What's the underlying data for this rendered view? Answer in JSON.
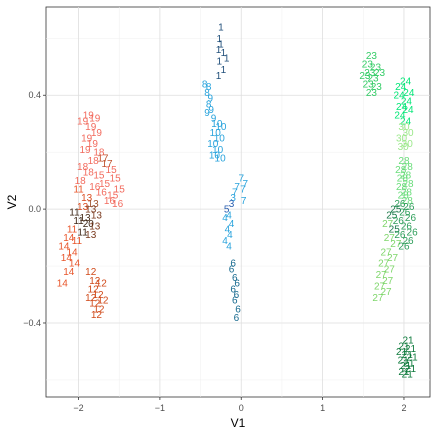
{
  "chart_data": {
    "type": "scatter",
    "title": "",
    "xlabel": "V1",
    "ylabel": "V2",
    "xlim": [
      -2.4,
      2.32
    ],
    "ylim": [
      -0.66,
      0.71
    ],
    "x_ticks": [
      -2,
      -1,
      0,
      1,
      2
    ],
    "y_ticks": [
      -0.4,
      0.0,
      0.4
    ],
    "x_tick_labels": [
      "−2",
      "−1",
      "0",
      "1",
      "2"
    ],
    "y_tick_labels": [
      "−0.4",
      "0.0",
      "0.4"
    ],
    "grid": true,
    "legend": "none",
    "marker": "text labels",
    "points": [
      {
        "x": -0.25,
        "y": 0.64,
        "label": "1",
        "color": "#1f4e79"
      },
      {
        "x": -0.27,
        "y": 0.6,
        "label": "1",
        "color": "#1f4e79"
      },
      {
        "x": -0.25,
        "y": 0.58,
        "label": "1",
        "color": "#1f4e79"
      },
      {
        "x": -0.28,
        "y": 0.56,
        "label": "1",
        "color": "#1f4e79"
      },
      {
        "x": -0.22,
        "y": 0.55,
        "label": "1",
        "color": "#1f4e79"
      },
      {
        "x": -0.18,
        "y": 0.53,
        "label": "1",
        "color": "#1f4e79"
      },
      {
        "x": -0.27,
        "y": 0.52,
        "label": "1",
        "color": "#1f4e79"
      },
      {
        "x": -0.22,
        "y": 0.49,
        "label": "1",
        "color": "#1f4e79"
      },
      {
        "x": -0.28,
        "y": 0.47,
        "label": "1",
        "color": "#1f4e79"
      },
      {
        "x": -0.45,
        "y": 0.44,
        "label": "8",
        "color": "#29a3dc"
      },
      {
        "x": -0.4,
        "y": 0.43,
        "label": "8",
        "color": "#29a3dc"
      },
      {
        "x": -0.42,
        "y": 0.41,
        "label": "8",
        "color": "#29a3dc"
      },
      {
        "x": -0.38,
        "y": 0.39,
        "label": "9",
        "color": "#29a3dc"
      },
      {
        "x": -0.4,
        "y": 0.37,
        "label": "8",
        "color": "#29a3dc"
      },
      {
        "x": -0.37,
        "y": 0.35,
        "label": "9",
        "color": "#29a3dc"
      },
      {
        "x": -0.42,
        "y": 0.34,
        "label": "9",
        "color": "#29a3dc"
      },
      {
        "x": -0.34,
        "y": 0.32,
        "label": "9",
        "color": "#29a3dc"
      },
      {
        "x": -0.3,
        "y": 0.3,
        "label": "10",
        "color": "#29a3dc"
      },
      {
        "x": -0.25,
        "y": 0.29,
        "label": "10",
        "color": "#29a3dc"
      },
      {
        "x": -0.32,
        "y": 0.27,
        "label": "10",
        "color": "#29a3dc"
      },
      {
        "x": -0.27,
        "y": 0.25,
        "label": "10",
        "color": "#29a3dc"
      },
      {
        "x": -0.35,
        "y": 0.23,
        "label": "10",
        "color": "#29a3dc"
      },
      {
        "x": -0.29,
        "y": 0.21,
        "label": "10",
        "color": "#29a3dc"
      },
      {
        "x": -0.33,
        "y": 0.19,
        "label": "10",
        "color": "#29a3dc"
      },
      {
        "x": -0.26,
        "y": 0.18,
        "label": "10",
        "color": "#29a3dc"
      },
      {
        "x": 0.0,
        "y": 0.11,
        "label": "7",
        "color": "#29a3dc"
      },
      {
        "x": 0.05,
        "y": 0.09,
        "label": "7",
        "color": "#29a3dc"
      },
      {
        "x": -0.05,
        "y": 0.08,
        "label": "7",
        "color": "#29a3dc"
      },
      {
        "x": 0.02,
        "y": 0.07,
        "label": "7",
        "color": "#29a3dc"
      },
      {
        "x": -0.08,
        "y": 0.06,
        "label": "7",
        "color": "#29a3dc"
      },
      {
        "x": -0.1,
        "y": 0.04,
        "label": "3",
        "color": "#29a3dc"
      },
      {
        "x": 0.03,
        "y": 0.03,
        "label": "7",
        "color": "#29a3dc"
      },
      {
        "x": -0.12,
        "y": 0.02,
        "label": "3",
        "color": "#2b5fb0"
      },
      {
        "x": -0.18,
        "y": 0.0,
        "label": "5",
        "color": "#2b5fb0"
      },
      {
        "x": -0.15,
        "y": -0.02,
        "label": "4",
        "color": "#29a3dc"
      },
      {
        "x": -0.2,
        "y": -0.03,
        "label": "4",
        "color": "#29a3dc"
      },
      {
        "x": -0.12,
        "y": -0.05,
        "label": "4",
        "color": "#29a3dc"
      },
      {
        "x": -0.17,
        "y": -0.07,
        "label": "4",
        "color": "#29a3dc"
      },
      {
        "x": -0.14,
        "y": -0.09,
        "label": "4",
        "color": "#29a3dc"
      },
      {
        "x": -0.2,
        "y": -0.11,
        "label": "4",
        "color": "#29a3dc"
      },
      {
        "x": -0.15,
        "y": -0.13,
        "label": "4",
        "color": "#29a3dc"
      },
      {
        "x": -0.1,
        "y": -0.19,
        "label": "6",
        "color": "#176a8f"
      },
      {
        "x": -0.12,
        "y": -0.21,
        "label": "6",
        "color": "#176a8f"
      },
      {
        "x": -0.08,
        "y": -0.24,
        "label": "6",
        "color": "#176a8f"
      },
      {
        "x": -0.05,
        "y": -0.26,
        "label": "6",
        "color": "#176a8f"
      },
      {
        "x": -0.1,
        "y": -0.28,
        "label": "6",
        "color": "#176a8f"
      },
      {
        "x": -0.06,
        "y": -0.3,
        "label": "6",
        "color": "#176a8f"
      },
      {
        "x": -0.08,
        "y": -0.32,
        "label": "6",
        "color": "#176a8f"
      },
      {
        "x": -0.04,
        "y": -0.35,
        "label": "6",
        "color": "#176a8f"
      },
      {
        "x": -0.06,
        "y": -0.38,
        "label": "6",
        "color": "#176a8f"
      },
      {
        "x": -1.88,
        "y": 0.33,
        "label": "19",
        "color": "#f26b5e"
      },
      {
        "x": -1.8,
        "y": 0.32,
        "label": "19",
        "color": "#f26b5e"
      },
      {
        "x": -1.95,
        "y": 0.31,
        "label": "19",
        "color": "#f26b5e"
      },
      {
        "x": -1.85,
        "y": 0.29,
        "label": "19",
        "color": "#f26b5e"
      },
      {
        "x": -1.78,
        "y": 0.27,
        "label": "19",
        "color": "#f26b5e"
      },
      {
        "x": -1.9,
        "y": 0.25,
        "label": "19",
        "color": "#f26b5e"
      },
      {
        "x": -1.83,
        "y": 0.23,
        "label": "19",
        "color": "#f26b5e"
      },
      {
        "x": -1.92,
        "y": 0.21,
        "label": "19",
        "color": "#f26b5e"
      },
      {
        "x": -1.75,
        "y": 0.2,
        "label": "18",
        "color": "#f26b5e"
      },
      {
        "x": -1.7,
        "y": 0.18,
        "label": "17",
        "color": "#c0532e"
      },
      {
        "x": -1.82,
        "y": 0.17,
        "label": "18",
        "color": "#f26b5e"
      },
      {
        "x": -1.65,
        "y": 0.16,
        "label": "17",
        "color": "#c0532e"
      },
      {
        "x": -1.95,
        "y": 0.15,
        "label": "18",
        "color": "#f26b5e"
      },
      {
        "x": -1.6,
        "y": 0.14,
        "label": "15",
        "color": "#f26b5e"
      },
      {
        "x": -1.88,
        "y": 0.13,
        "label": "18",
        "color": "#f26b5e"
      },
      {
        "x": -1.75,
        "y": 0.12,
        "label": "15",
        "color": "#f26b5e"
      },
      {
        "x": -1.55,
        "y": 0.11,
        "label": "15",
        "color": "#f26b5e"
      },
      {
        "x": -1.98,
        "y": 0.1,
        "label": "18",
        "color": "#f26b5e"
      },
      {
        "x": -1.68,
        "y": 0.09,
        "label": "15",
        "color": "#f26b5e"
      },
      {
        "x": -1.8,
        "y": 0.08,
        "label": "16",
        "color": "#f26b5e"
      },
      {
        "x": -1.5,
        "y": 0.07,
        "label": "15",
        "color": "#f26b5e"
      },
      {
        "x": -2.0,
        "y": 0.07,
        "label": "11",
        "color": "#e8552a"
      },
      {
        "x": -1.72,
        "y": 0.06,
        "label": "16",
        "color": "#f26b5e"
      },
      {
        "x": -1.58,
        "y": 0.05,
        "label": "15",
        "color": "#f26b5e"
      },
      {
        "x": -1.9,
        "y": 0.04,
        "label": "13",
        "color": "#d94a1e"
      },
      {
        "x": -1.62,
        "y": 0.03,
        "label": "16",
        "color": "#f26b5e"
      },
      {
        "x": -1.82,
        "y": 0.02,
        "label": "13",
        "color": "#a0522d"
      },
      {
        "x": -1.52,
        "y": 0.02,
        "label": "16",
        "color": "#f26b5e"
      },
      {
        "x": -1.95,
        "y": 0.01,
        "label": "13",
        "color": "#d94a1e"
      },
      {
        "x": -1.85,
        "y": 0.0,
        "label": "13",
        "color": "#7a3a1e"
      },
      {
        "x": -2.05,
        "y": -0.01,
        "label": "11",
        "color": "#3b2414"
      },
      {
        "x": -1.78,
        "y": -0.02,
        "label": "13",
        "color": "#7a3a1e"
      },
      {
        "x": -1.92,
        "y": -0.03,
        "label": "13",
        "color": "#4a2e1a"
      },
      {
        "x": -2.0,
        "y": -0.04,
        "label": "11",
        "color": "#3b2414"
      },
      {
        "x": -1.88,
        "y": -0.05,
        "label": "20",
        "color": "#3b2414"
      },
      {
        "x": -1.8,
        "y": -0.06,
        "label": "13",
        "color": "#7a3a1e"
      },
      {
        "x": -2.08,
        "y": -0.07,
        "label": "11",
        "color": "#e8552a"
      },
      {
        "x": -1.95,
        "y": -0.08,
        "label": "11",
        "color": "#3b2414"
      },
      {
        "x": -1.85,
        "y": -0.09,
        "label": "13",
        "color": "#7a3a1e"
      },
      {
        "x": -2.12,
        "y": -0.1,
        "label": "14",
        "color": "#e8552a"
      },
      {
        "x": -2.02,
        "y": -0.11,
        "label": "11",
        "color": "#e8552a"
      },
      {
        "x": -2.18,
        "y": -0.13,
        "label": "14",
        "color": "#e8552a"
      },
      {
        "x": -2.08,
        "y": -0.15,
        "label": "14",
        "color": "#e8552a"
      },
      {
        "x": -2.15,
        "y": -0.17,
        "label": "14",
        "color": "#e8552a"
      },
      {
        "x": -2.05,
        "y": -0.19,
        "label": "14",
        "color": "#e8552a"
      },
      {
        "x": -2.12,
        "y": -0.22,
        "label": "14",
        "color": "#e8552a"
      },
      {
        "x": -2.2,
        "y": -0.26,
        "label": "14",
        "color": "#e8552a"
      },
      {
        "x": -1.85,
        "y": -0.22,
        "label": "12",
        "color": "#d04a1a"
      },
      {
        "x": -1.8,
        "y": -0.25,
        "label": "12",
        "color": "#d04a1a"
      },
      {
        "x": -1.72,
        "y": -0.26,
        "label": "12",
        "color": "#d04a1a"
      },
      {
        "x": -1.82,
        "y": -0.28,
        "label": "12",
        "color": "#d04a1a"
      },
      {
        "x": -1.76,
        "y": -0.3,
        "label": "12",
        "color": "#d04a1a"
      },
      {
        "x": -1.85,
        "y": -0.31,
        "label": "12",
        "color": "#d04a1a"
      },
      {
        "x": -1.7,
        "y": -0.32,
        "label": "12",
        "color": "#d04a1a"
      },
      {
        "x": -1.8,
        "y": -0.33,
        "label": "12",
        "color": "#d04a1a"
      },
      {
        "x": -1.75,
        "y": -0.35,
        "label": "12",
        "color": "#d04a1a"
      },
      {
        "x": -1.78,
        "y": -0.37,
        "label": "12",
        "color": "#d04a1a"
      },
      {
        "x": 1.6,
        "y": 0.54,
        "label": "23",
        "color": "#33cc66"
      },
      {
        "x": 1.55,
        "y": 0.51,
        "label": "23",
        "color": "#33cc66"
      },
      {
        "x": 1.65,
        "y": 0.5,
        "label": "23",
        "color": "#33cc66"
      },
      {
        "x": 1.58,
        "y": 0.48,
        "label": "23",
        "color": "#33cc66"
      },
      {
        "x": 1.7,
        "y": 0.48,
        "label": "23",
        "color": "#33cc66"
      },
      {
        "x": 1.52,
        "y": 0.47,
        "label": "23",
        "color": "#33cc66"
      },
      {
        "x": 1.62,
        "y": 0.46,
        "label": "23",
        "color": "#33cc66"
      },
      {
        "x": 1.56,
        "y": 0.44,
        "label": "23",
        "color": "#33cc66"
      },
      {
        "x": 1.66,
        "y": 0.43,
        "label": "23",
        "color": "#33cc66"
      },
      {
        "x": 1.6,
        "y": 0.41,
        "label": "23",
        "color": "#33cc66"
      },
      {
        "x": 2.02,
        "y": 0.45,
        "label": "24",
        "color": "#00e676"
      },
      {
        "x": 1.96,
        "y": 0.43,
        "label": "24",
        "color": "#00e676"
      },
      {
        "x": 2.06,
        "y": 0.41,
        "label": "24",
        "color": "#00e676"
      },
      {
        "x": 1.94,
        "y": 0.4,
        "label": "24",
        "color": "#00e676"
      },
      {
        "x": 2.03,
        "y": 0.38,
        "label": "24",
        "color": "#00e676"
      },
      {
        "x": 1.97,
        "y": 0.36,
        "label": "24",
        "color": "#00e676"
      },
      {
        "x": 2.05,
        "y": 0.35,
        "label": "24",
        "color": "#00e676"
      },
      {
        "x": 1.95,
        "y": 0.33,
        "label": "24",
        "color": "#00e676"
      },
      {
        "x": 2.02,
        "y": 0.31,
        "label": "24",
        "color": "#00e676"
      },
      {
        "x": 2.0,
        "y": 0.29,
        "label": "30",
        "color": "#9be88a"
      },
      {
        "x": 2.05,
        "y": 0.27,
        "label": "30",
        "color": "#9be88a"
      },
      {
        "x": 1.97,
        "y": 0.25,
        "label": "30",
        "color": "#9be88a"
      },
      {
        "x": 2.04,
        "y": 0.23,
        "label": "30",
        "color": "#9be88a"
      },
      {
        "x": 1.99,
        "y": 0.22,
        "label": "30",
        "color": "#9be88a"
      },
      {
        "x": 2.0,
        "y": 0.17,
        "label": "28",
        "color": "#69dd7a"
      },
      {
        "x": 2.04,
        "y": 0.15,
        "label": "28",
        "color": "#69dd7a"
      },
      {
        "x": 1.96,
        "y": 0.14,
        "label": "28",
        "color": "#69dd7a"
      },
      {
        "x": 2.02,
        "y": 0.12,
        "label": "28",
        "color": "#69dd7a"
      },
      {
        "x": 1.98,
        "y": 0.11,
        "label": "28",
        "color": "#69dd7a"
      },
      {
        "x": 2.05,
        "y": 0.09,
        "label": "28",
        "color": "#69dd7a"
      },
      {
        "x": 1.97,
        "y": 0.08,
        "label": "28",
        "color": "#69dd7a"
      },
      {
        "x": 2.03,
        "y": 0.06,
        "label": "28",
        "color": "#69dd7a"
      },
      {
        "x": 1.99,
        "y": 0.05,
        "label": "28",
        "color": "#69dd7a"
      },
      {
        "x": 2.04,
        "y": 0.03,
        "label": "28",
        "color": "#69dd7a"
      },
      {
        "x": 1.95,
        "y": 0.02,
        "label": "26",
        "color": "#2e9e5a"
      },
      {
        "x": 2.06,
        "y": 0.01,
        "label": "26",
        "color": "#2e9e5a"
      },
      {
        "x": 1.9,
        "y": 0.0,
        "label": "25",
        "color": "#1b7a4a"
      },
      {
        "x": 2.01,
        "y": -0.01,
        "label": "26",
        "color": "#2e9e5a"
      },
      {
        "x": 1.85,
        "y": -0.02,
        "label": "25",
        "color": "#1b7a4a"
      },
      {
        "x": 2.08,
        "y": -0.03,
        "label": "26",
        "color": "#2e9e5a"
      },
      {
        "x": 1.93,
        "y": -0.04,
        "label": "26",
        "color": "#2e9e5a"
      },
      {
        "x": 1.8,
        "y": -0.05,
        "label": "27",
        "color": "#7fd66b"
      },
      {
        "x": 2.03,
        "y": -0.06,
        "label": "26",
        "color": "#2e9e5a"
      },
      {
        "x": 1.88,
        "y": -0.07,
        "label": "25",
        "color": "#1b7a4a"
      },
      {
        "x": 2.1,
        "y": -0.08,
        "label": "26",
        "color": "#2e9e5a"
      },
      {
        "x": 1.95,
        "y": -0.09,
        "label": "26",
        "color": "#2e9e5a"
      },
      {
        "x": 1.82,
        "y": -0.1,
        "label": "27",
        "color": "#7fd66b"
      },
      {
        "x": 2.05,
        "y": -0.11,
        "label": "26",
        "color": "#2e9e5a"
      },
      {
        "x": 1.9,
        "y": -0.12,
        "label": "27",
        "color": "#7fd66b"
      },
      {
        "x": 2.0,
        "y": -0.13,
        "label": "26",
        "color": "#2e9e5a"
      },
      {
        "x": 1.78,
        "y": -0.15,
        "label": "27",
        "color": "#7fd66b"
      },
      {
        "x": 1.86,
        "y": -0.17,
        "label": "27",
        "color": "#7fd66b"
      },
      {
        "x": 1.75,
        "y": -0.19,
        "label": "27",
        "color": "#7fd66b"
      },
      {
        "x": 1.82,
        "y": -0.21,
        "label": "27",
        "color": "#7fd66b"
      },
      {
        "x": 1.72,
        "y": -0.23,
        "label": "27",
        "color": "#7fd66b"
      },
      {
        "x": 1.8,
        "y": -0.25,
        "label": "27",
        "color": "#7fd66b"
      },
      {
        "x": 1.7,
        "y": -0.27,
        "label": "27",
        "color": "#7fd66b"
      },
      {
        "x": 1.78,
        "y": -0.29,
        "label": "27",
        "color": "#7fd66b"
      },
      {
        "x": 1.68,
        "y": -0.31,
        "label": "27",
        "color": "#7fd66b"
      },
      {
        "x": 2.05,
        "y": -0.46,
        "label": "21",
        "color": "#0e7a3c"
      },
      {
        "x": 2.0,
        "y": -0.48,
        "label": "21",
        "color": "#0e7a3c"
      },
      {
        "x": 2.08,
        "y": -0.49,
        "label": "21",
        "color": "#0e7a3c"
      },
      {
        "x": 1.97,
        "y": -0.5,
        "label": "21",
        "color": "#0e7a3c"
      },
      {
        "x": 2.04,
        "y": -0.51,
        "label": "21",
        "color": "#0e7a3c"
      },
      {
        "x": 2.1,
        "y": -0.52,
        "label": "21",
        "color": "#0e7a3c"
      },
      {
        "x": 1.99,
        "y": -0.53,
        "label": "21",
        "color": "#0e7a3c"
      },
      {
        "x": 2.06,
        "y": -0.54,
        "label": "21",
        "color": "#0e7a3c"
      },
      {
        "x": 2.02,
        "y": -0.55,
        "label": "21",
        "color": "#0e7a3c"
      },
      {
        "x": 2.08,
        "y": -0.56,
        "label": "21",
        "color": "#0e7a3c"
      },
      {
        "x": 2.0,
        "y": -0.57,
        "label": "21",
        "color": "#0e7a3c"
      },
      {
        "x": 2.04,
        "y": -0.58,
        "label": "21",
        "color": "#0e7a3c"
      }
    ]
  },
  "colors": {
    "panel_background": "#ffffff",
    "grid_major": "#dedede",
    "grid_minor": "#efefef",
    "panel_border": "#333333"
  }
}
